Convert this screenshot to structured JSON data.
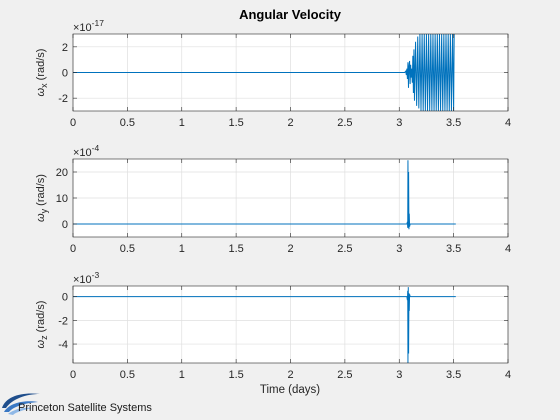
{
  "figure": {
    "title": "Angular Velocity",
    "xlabel": "Time (days)",
    "logo_text": "Princeton Satellite Systems",
    "logo_icon": "swoosh-logo-icon",
    "colors": {
      "line": "#0072bd",
      "background": "#f0f0f0",
      "axes": "#ffffff",
      "grid": "#dfdfdf"
    }
  },
  "chart_data": [
    {
      "type": "line",
      "title": "Angular Velocity",
      "ylabel_symbol": "ω",
      "ylabel_sub": "x",
      "ylabel_unit": "(rad/s)",
      "exponent_base": "×10",
      "exponent": "-17",
      "xlim": [
        0,
        4
      ],
      "ylim": [
        -3,
        3
      ],
      "x_ticks": [
        "0",
        "0.5",
        "1",
        "1.5",
        "2",
        "2.5",
        "3",
        "3.5",
        "4"
      ],
      "y_ticks": [
        -2,
        0,
        2
      ],
      "y_tick_labels": [
        "-2",
        "0",
        "2"
      ],
      "grid": true,
      "series": [
        {
          "x": [
            0,
            3.05,
            3.06,
            3.065,
            3.07,
            3.075,
            3.08,
            3.085,
            3.09,
            3.095,
            3.1,
            3.105,
            3.11,
            3.115,
            3.12,
            3.125,
            3.13,
            3.135,
            3.14,
            3.15,
            3.16,
            3.17,
            3.18,
            3.19,
            3.2,
            3.21,
            3.22,
            3.23,
            3.24,
            3.25,
            3.26,
            3.27,
            3.28,
            3.29,
            3.3,
            3.31,
            3.32,
            3.33,
            3.34,
            3.35,
            3.36,
            3.37,
            3.38,
            3.39,
            3.4,
            3.41,
            3.42,
            3.43,
            3.44,
            3.45,
            3.46,
            3.47,
            3.48,
            3.49,
            3.5,
            3.505
          ],
          "y": [
            0,
            0,
            0.1,
            -0.2,
            0.3,
            -0.5,
            0.8,
            -1.2,
            0.5,
            0.9,
            -0.9,
            0.6,
            -0.4,
            0.3,
            -0.8,
            1.3,
            -1.6,
            1.8,
            -2.2,
            2.4,
            -2.6,
            2.8,
            -2.8,
            3,
            -3,
            3,
            -3,
            3,
            -3,
            3,
            -3,
            3,
            -3,
            3,
            -3,
            3,
            -3,
            3,
            -3,
            3,
            -3,
            3,
            -3,
            3,
            -3,
            3,
            -3,
            3,
            -3,
            3,
            -3,
            3,
            -3,
            3,
            -3,
            3
          ]
        }
      ]
    },
    {
      "type": "line",
      "ylabel_symbol": "ω",
      "ylabel_sub": "y",
      "ylabel_unit": "(rad/s)",
      "exponent_base": "×10",
      "exponent": "-4",
      "xlim": [
        0,
        4
      ],
      "ylim": [
        -5,
        25
      ],
      "x_ticks": [
        "0",
        "0.5",
        "1",
        "1.5",
        "2",
        "2.5",
        "3",
        "3.5",
        "4"
      ],
      "y_ticks": [
        0,
        10,
        20
      ],
      "y_tick_labels": [
        "0",
        "10",
        "20"
      ],
      "grid": true,
      "series": [
        {
          "x": [
            0,
            3.07,
            3.075,
            3.078,
            3.08,
            3.083,
            3.086,
            3.089,
            3.092,
            3.095,
            3.1,
            3.52
          ],
          "y": [
            0,
            0,
            0.8,
            -1.5,
            24.5,
            -1.5,
            20,
            -2,
            4,
            -1,
            0,
            0
          ]
        }
      ]
    },
    {
      "type": "line",
      "ylabel_symbol": "ω",
      "ylabel_sub": "z",
      "ylabel_unit": "(rad/s)",
      "exponent_base": "×10",
      "exponent": "-3",
      "xlim": [
        0,
        4
      ],
      "ylim": [
        -5.6,
        0.9
      ],
      "x_ticks": [
        "0",
        "0.5",
        "1",
        "1.5",
        "2",
        "2.5",
        "3",
        "3.5",
        "4"
      ],
      "y_ticks": [
        -4,
        -2,
        0
      ],
      "y_tick_labels": [
        "-4",
        "-2",
        "0"
      ],
      "grid": true,
      "series": [
        {
          "x": [
            0,
            3.07,
            3.075,
            3.078,
            3.08,
            3.083,
            3.086,
            3.089,
            3.092,
            3.095,
            3.1,
            3.52
          ],
          "y": [
            0,
            0,
            -0.3,
            0.5,
            -5.6,
            0.8,
            -4.8,
            0.3,
            -1.2,
            0.2,
            0,
            0
          ]
        }
      ]
    }
  ]
}
